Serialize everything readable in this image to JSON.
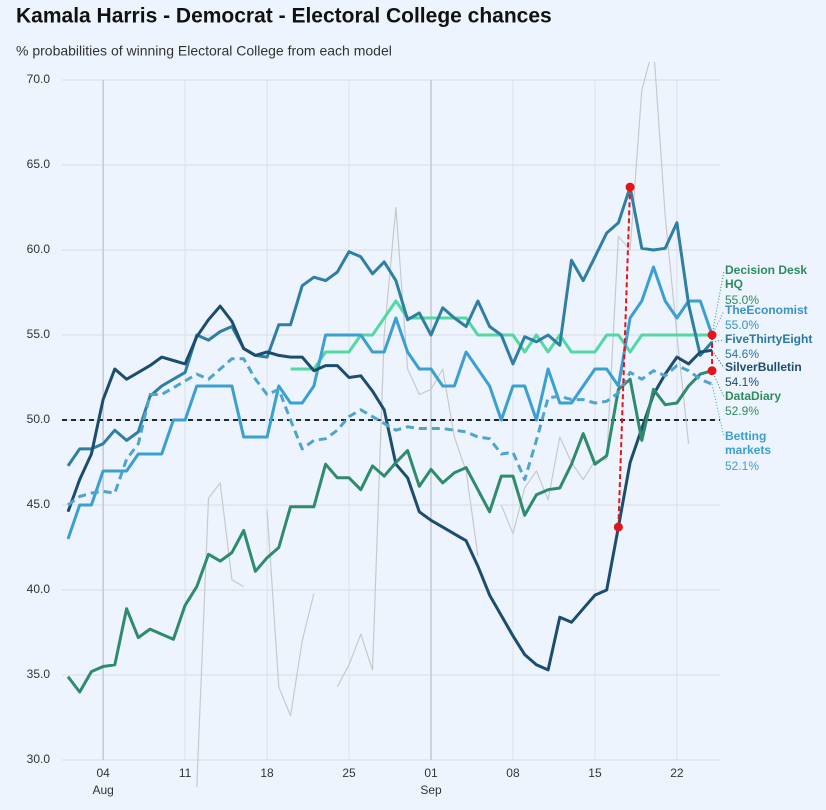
{
  "chart_data": {
    "type": "line",
    "title": "Kamala Harris - Democrat - Electoral College chances",
    "subtitle": "% probabilities of winning Electoral College from each model",
    "categories": [
      null,
      null,
      null,
      "04",
      null,
      null,
      null,
      null,
      null,
      null,
      "11",
      null,
      null,
      null,
      null,
      null,
      null,
      "18",
      null,
      null,
      null,
      null,
      null,
      null,
      "25",
      null,
      null,
      null,
      null,
      null,
      null,
      "01",
      null,
      null,
      null,
      null,
      null,
      null,
      "08",
      null,
      null,
      null,
      null,
      null,
      null,
      "15",
      null,
      null,
      null,
      null,
      null,
      null,
      "22",
      null,
      null,
      null
    ],
    "x_groups": [
      {
        "label": "Aug",
        "at": "04"
      },
      {
        "label": "Sep",
        "at": "01"
      }
    ],
    "ylim": [
      30,
      70
    ],
    "yticks": [
      {
        "value": 30,
        "label": "30.0"
      },
      {
        "value": 35,
        "label": "35.0"
      },
      {
        "value": 40,
        "label": "40.0"
      },
      {
        "value": 45,
        "label": "45.0"
      },
      {
        "value": 50,
        "label": "50.0"
      },
      {
        "value": 55,
        "label": "55.0"
      },
      {
        "value": 60,
        "label": "60.0"
      },
      {
        "value": 65,
        "label": "65.0"
      },
      {
        "value": 70,
        "label": "70.0"
      }
    ],
    "grid": true,
    "reference_line": {
      "value": 50,
      "color": "#1a2a3a",
      "dashed": true
    },
    "series": [
      {
        "name": "Decision Desk HQ",
        "color": "#52d9a2",
        "label_color": "#2e8b5e",
        "values": [
          null,
          null,
          null,
          null,
          null,
          null,
          null,
          null,
          null,
          null,
          null,
          null,
          null,
          null,
          null,
          null,
          null,
          null,
          null,
          53,
          53,
          53,
          54,
          54,
          54,
          55,
          55,
          56,
          57,
          56,
          56,
          56,
          56,
          56,
          56,
          55,
          55,
          55,
          55,
          54,
          55,
          54,
          55,
          54,
          54,
          54,
          55,
          55,
          54,
          55,
          55,
          55,
          55,
          55,
          55,
          55.0
        ],
        "value_labels": [
          null,
          null,
          null,
          null,
          null,
          null,
          null,
          null,
          null,
          null,
          null,
          null,
          null,
          null,
          null,
          null,
          null,
          null,
          null,
          null,
          null,
          null,
          null,
          null,
          null,
          null,
          null,
          null,
          null,
          null,
          null,
          null,
          null,
          null,
          null,
          null,
          null,
          null,
          null,
          null,
          null,
          null,
          null,
          null,
          null,
          null,
          null,
          null,
          null,
          null,
          null,
          null,
          null,
          null,
          null,
          "55.0%"
        ]
      },
      {
        "name": "TheEconomist",
        "color": "#3a9fd2",
        "label_color": "#3a92c4",
        "values": [
          43,
          45,
          45,
          47,
          47,
          47,
          48,
          48,
          48,
          50,
          50,
          52,
          52,
          52,
          52,
          49,
          49,
          49,
          52,
          51,
          51,
          52,
          55,
          55,
          55,
          55,
          54,
          54,
          56,
          54,
          53,
          53,
          52,
          52,
          54,
          53,
          52,
          50,
          52,
          52,
          50,
          53,
          51,
          51,
          52,
          53,
          53,
          52,
          56,
          57,
          59,
          57,
          56,
          57,
          57,
          55.0
        ],
        "value_labels": [
          null,
          null,
          null,
          null,
          null,
          null,
          null,
          null,
          null,
          null,
          null,
          null,
          null,
          null,
          null,
          null,
          null,
          null,
          null,
          null,
          null,
          null,
          null,
          null,
          null,
          null,
          null,
          null,
          null,
          null,
          null,
          null,
          null,
          null,
          null,
          null,
          null,
          null,
          null,
          null,
          null,
          null,
          null,
          null,
          null,
          null,
          null,
          null,
          null,
          null,
          null,
          null,
          null,
          null,
          null,
          "55.0%"
        ]
      },
      {
        "name": "FiveThirtyEight",
        "color": "#2e7fa3",
        "label_color": "#2a77a0",
        "values": [
          47.3,
          48.3,
          48.3,
          48.6,
          49.4,
          48.8,
          49.3,
          51.4,
          52.0,
          52.4,
          52.8,
          55.0,
          54.7,
          55.2,
          55.5,
          54.2,
          53.8,
          53.7,
          55.6,
          55.6,
          57.9,
          58.4,
          58.2,
          58.7,
          59.9,
          59.6,
          58.6,
          59.3,
          58.2,
          55.9,
          56.3,
          55.0,
          56.6,
          56.0,
          55.5,
          57.0,
          55.5,
          55.0,
          53.3,
          54.9,
          54.6,
          55.0,
          54.4,
          59.4,
          58.2,
          59.6,
          61.0,
          61.6,
          63.7,
          60.1,
          60.0,
          60.1,
          61.6,
          56.8,
          53.8,
          54.6
        ],
        "value_labels": [
          null,
          null,
          null,
          null,
          null,
          null,
          null,
          null,
          null,
          null,
          null,
          null,
          null,
          null,
          null,
          null,
          null,
          null,
          null,
          null,
          null,
          null,
          null,
          null,
          null,
          null,
          null,
          null,
          null,
          null,
          null,
          null,
          null,
          null,
          null,
          null,
          null,
          null,
          null,
          null,
          null,
          null,
          null,
          null,
          null,
          null,
          null,
          null,
          null,
          null,
          null,
          null,
          null,
          null,
          null,
          "54.6%"
        ]
      },
      {
        "name": "SilverBulletin",
        "color": "#1c4d6e",
        "label_color": "#1c4d6e",
        "values": [
          44.6,
          46.5,
          48.0,
          51.2,
          53.0,
          52.4,
          52.8,
          53.2,
          53.7,
          53.5,
          53.3,
          54.9,
          55.9,
          56.7,
          55.8,
          54.2,
          53.8,
          54.0,
          53.8,
          53.7,
          53.7,
          52.9,
          53.2,
          53.2,
          52.5,
          52.6,
          51.7,
          50.6,
          47.4,
          46.6,
          44.6,
          44.1,
          43.7,
          43.3,
          42.9,
          41.4,
          39.7,
          38.5,
          37.3,
          36.2,
          35.6,
          35.3,
          38.4,
          38.1,
          38.9,
          39.7,
          40.0,
          43.7,
          47.5,
          49.5,
          51.5,
          52.7,
          53.7,
          53.3,
          54.0,
          54.1
        ],
        "value_labels": [
          null,
          null,
          null,
          null,
          null,
          null,
          null,
          null,
          null,
          null,
          null,
          null,
          null,
          null,
          null,
          null,
          null,
          null,
          null,
          null,
          null,
          null,
          null,
          null,
          null,
          null,
          null,
          null,
          null,
          null,
          null,
          null,
          null,
          null,
          null,
          null,
          null,
          null,
          null,
          null,
          null,
          null,
          null,
          null,
          null,
          null,
          null,
          null,
          null,
          null,
          null,
          null,
          null,
          null,
          null,
          "54.1%"
        ]
      },
      {
        "name": "DataDiary",
        "color": "#2e8b6c",
        "label_color": "#2e8b5e",
        "values": [
          34.9,
          34.0,
          35.2,
          35.5,
          35.6,
          38.9,
          37.2,
          37.7,
          37.4,
          37.1,
          39.1,
          40.2,
          42.1,
          41.7,
          42.2,
          43.5,
          41.1,
          41.9,
          42.5,
          44.9,
          44.9,
          44.9,
          47.4,
          46.6,
          46.6,
          45.9,
          47.3,
          46.7,
          47.5,
          48.2,
          46.1,
          47.1,
          46.3,
          46.9,
          47.2,
          45.9,
          44.6,
          46.7,
          46.7,
          44.4,
          45.6,
          45.9,
          46.0,
          47.4,
          49.2,
          47.4,
          47.9,
          51.8,
          52.4,
          48.8,
          51.8,
          50.9,
          51.0,
          52.0,
          52.7,
          52.9
        ],
        "value_labels": [
          null,
          null,
          null,
          null,
          null,
          null,
          null,
          null,
          null,
          null,
          null,
          null,
          null,
          null,
          null,
          null,
          null,
          null,
          null,
          null,
          null,
          null,
          null,
          null,
          null,
          null,
          null,
          null,
          null,
          null,
          null,
          null,
          null,
          null,
          null,
          null,
          null,
          null,
          null,
          null,
          null,
          null,
          null,
          null,
          null,
          null,
          null,
          null,
          null,
          null,
          null,
          null,
          null,
          null,
          null,
          "52.9%"
        ]
      },
      {
        "name": "Betting markets",
        "color": "#4ea3cf",
        "label_color": "#3a9fd2",
        "dashed": true,
        "values": [
          45.0,
          45.5,
          45.7,
          45.8,
          45.7,
          47.7,
          48.6,
          51.5,
          51.5,
          51.9,
          52.3,
          52.7,
          52.4,
          53.0,
          53.6,
          53.6,
          52.4,
          51.5,
          51.8,
          50.0,
          48.3,
          48.8,
          48.9,
          49.4,
          50.2,
          50.6,
          50.2,
          49.8,
          49.4,
          49.6,
          49.5,
          49.5,
          49.5,
          49.4,
          49.3,
          49.0,
          48.9,
          48.0,
          48.1,
          46.5,
          48.8,
          51.3,
          51.4,
          51.2,
          51.2,
          51.0,
          51.1,
          51.6,
          52.8,
          52.4,
          52.9,
          52.6,
          53.2,
          52.9,
          52.4,
          52.1
        ],
        "value_labels": [
          null,
          null,
          null,
          null,
          null,
          null,
          null,
          null,
          null,
          null,
          null,
          null,
          null,
          null,
          null,
          null,
          null,
          null,
          null,
          null,
          null,
          null,
          null,
          null,
          null,
          null,
          null,
          null,
          null,
          null,
          null,
          null,
          null,
          null,
          null,
          null,
          null,
          null,
          null,
          null,
          null,
          null,
          null,
          null,
          null,
          null,
          null,
          null,
          null,
          null,
          null,
          null,
          null,
          null,
          null,
          "52.1%"
        ]
      },
      {
        "color": "#c9c9cc",
        "thin": true,
        "values": [
          null,
          null,
          null,
          null,
          null,
          null,
          null,
          null,
          null,
          null,
          null,
          28.4,
          45.4,
          46.3,
          40.6,
          40.2,
          null,
          44.7,
          34.3,
          32.6,
          37.0,
          39.8,
          null,
          34.3,
          35.6,
          37.4,
          35.3,
          55.0,
          62.5,
          53.0,
          51.5,
          51.8,
          53.0,
          49.0,
          47.0,
          42.0,
          null,
          45.0,
          43.3,
          46.0,
          47.0,
          45.3,
          49.0,
          47.5,
          46.5,
          47.6,
          47.7,
          60.8,
          60.0,
          69.4,
          72.0,
          62.0,
          55.0,
          48.6,
          null,
          null
        ]
      }
    ],
    "highlight_color": "#e3141c",
    "highlights": [
      {
        "from": [
          3,
          47
        ],
        "to": [
          2,
          48
        ]
      },
      {
        "from": [
          1,
          55
        ],
        "to": [
          4,
          55
        ]
      }
    ]
  }
}
